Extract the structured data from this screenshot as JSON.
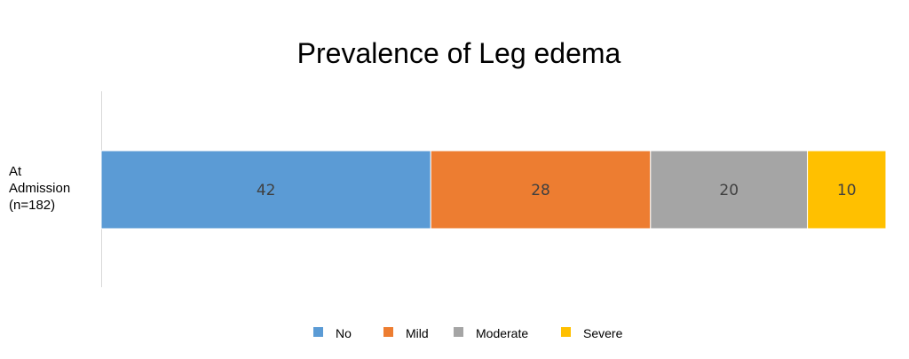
{
  "chart_data": {
    "type": "bar",
    "orientation": "horizontal",
    "stacked": true,
    "title": "Prevalence of Leg edema",
    "categories": [
      [
        "At",
        "Admission",
        "(n=182)"
      ]
    ],
    "series": [
      {
        "name": "No",
        "values": [
          42
        ],
        "color": "#5B9BD5"
      },
      {
        "name": "Mild",
        "values": [
          28
        ],
        "color": "#ED7D31"
      },
      {
        "name": "Moderate",
        "values": [
          20
        ],
        "color": "#A5A5A5"
      },
      {
        "name": "Severe",
        "values": [
          10
        ],
        "color": "#FFC000"
      }
    ],
    "xlim": [
      0,
      100
    ],
    "data_labels": true,
    "grid": false,
    "legend_position": "bottom"
  }
}
